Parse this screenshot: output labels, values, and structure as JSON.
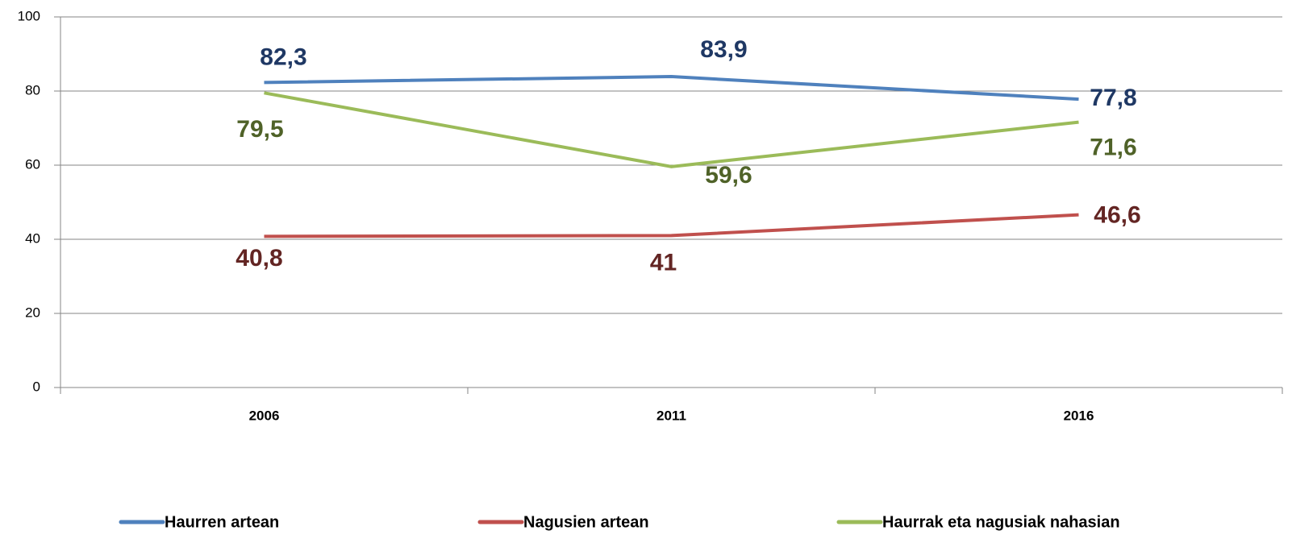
{
  "chart_data": {
    "type": "line",
    "categories": [
      "2006",
      "2011",
      "2016"
    ],
    "series": [
      {
        "name": "Haurren artean",
        "color": "#4f81bd",
        "values": [
          82.3,
          83.9,
          77.8
        ],
        "value_labels": [
          "82,3",
          "83,9",
          "77,8"
        ]
      },
      {
        "name": "Nagusien artean",
        "color": "#c0504d",
        "values": [
          40.8,
          41,
          46.6
        ],
        "value_labels": [
          "40,8",
          "41",
          "46,6"
        ]
      },
      {
        "name": "Haurrak eta nagusiak nahasian",
        "color": "#9bbb59",
        "values": [
          79.5,
          59.6,
          71.6
        ],
        "value_labels": [
          "79,5",
          "59,6",
          "71,6"
        ]
      }
    ],
    "ylim": [
      0,
      100
    ],
    "yticks": [
      0,
      20,
      40,
      60,
      80,
      100
    ],
    "grid": true,
    "legend": "bottom"
  }
}
